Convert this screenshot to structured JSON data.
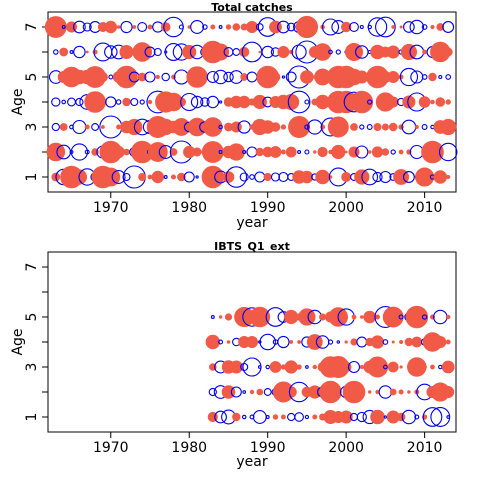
{
  "colors": {
    "positive": "#f05a46",
    "negative": "#0000ee",
    "axis": "#000000"
  },
  "chart_data": [
    {
      "type": "scatter",
      "subtype": "bubble-residual",
      "title": "Total catches",
      "xlabel": "year",
      "ylabel": "Age",
      "xlim": [
        1962,
        2014
      ],
      "ylim": [
        0.4,
        7.6
      ],
      "xticks": [
        1970,
        1980,
        1990,
        2000,
        2010
      ],
      "yticks": [
        1,
        3,
        5,
        7
      ],
      "ages": [
        1,
        2,
        3,
        4,
        5,
        6,
        7
      ],
      "years": [
        1963,
        2013
      ],
      "legend": "none",
      "grid": false
    },
    {
      "type": "scatter",
      "subtype": "bubble-residual",
      "title": "IBTS_Q1_ext",
      "xlabel": "year",
      "ylabel": "Age",
      "xlim": [
        1962,
        2014
      ],
      "ylim": [
        0.4,
        7.6
      ],
      "xticks": [
        1970,
        1980,
        1990,
        2000,
        2010
      ],
      "yticks": [
        1,
        3,
        5,
        7
      ],
      "ages": [
        1,
        2,
        3,
        4,
        5
      ],
      "years": [
        1983,
        2013
      ],
      "legend": "none",
      "grid": false
    }
  ]
}
